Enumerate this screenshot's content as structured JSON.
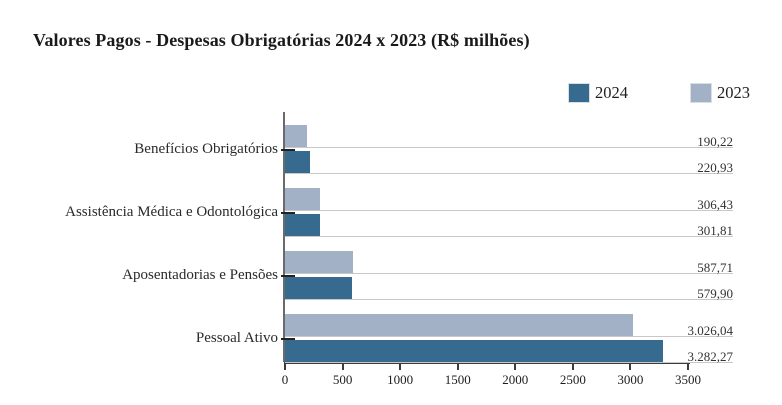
{
  "title": "Valores Pagos - Despesas Obrigatórias 2024 x 2023 (R$ milhões)",
  "legend": [
    {
      "label": "2024",
      "color": "#366b8f"
    },
    {
      "label": "2023",
      "color": "#a2b1c6"
    }
  ],
  "colors": {
    "series_2024": "#366b8f",
    "series_2023": "#a2b1c6",
    "gridline": "#c8c8c8",
    "x_axis": "#3c3c3c",
    "y_axis": "#6a6a6a",
    "text": "#222222"
  },
  "chart_data": {
    "type": "bar",
    "orientation": "horizontal",
    "title": "Valores Pagos - Despesas Obrigatórias 2024 x 2023 (R$ milhões)",
    "categories": [
      "Benefícios Obrigatórios",
      "Assistência Médica e Odontológica",
      "Aposentadorias e Pensões",
      "Pessoal Ativo"
    ],
    "series": [
      {
        "name": "2024",
        "color": "#366b8f",
        "values": [
          220.93,
          301.81,
          579.9,
          3282.27
        ],
        "value_labels": [
          "220,93",
          "301,81",
          "579,90",
          "3.282,27"
        ]
      },
      {
        "name": "2023",
        "color": "#a2b1c6",
        "values": [
          190.22,
          306.43,
          587.71,
          3026.04
        ],
        "value_labels": [
          "190,22",
          "306,43",
          "587,71",
          "3.026,04"
        ]
      }
    ],
    "group_order_note": "within each category the 2023 bar is drawn above the 2024 bar",
    "xlim": [
      0,
      3500
    ],
    "x_ticks": [
      0,
      500,
      1000,
      1500,
      2000,
      2500,
      3000,
      3500
    ],
    "x_tick_labels": [
      "0",
      "500",
      "1000",
      "1500",
      "2000",
      "2500",
      "3000",
      "3500"
    ],
    "grid": "horizontal lines under each bar",
    "legend_position": "top-right",
    "value_labels_position": "right margin, right-aligned above each bar gridline"
  }
}
